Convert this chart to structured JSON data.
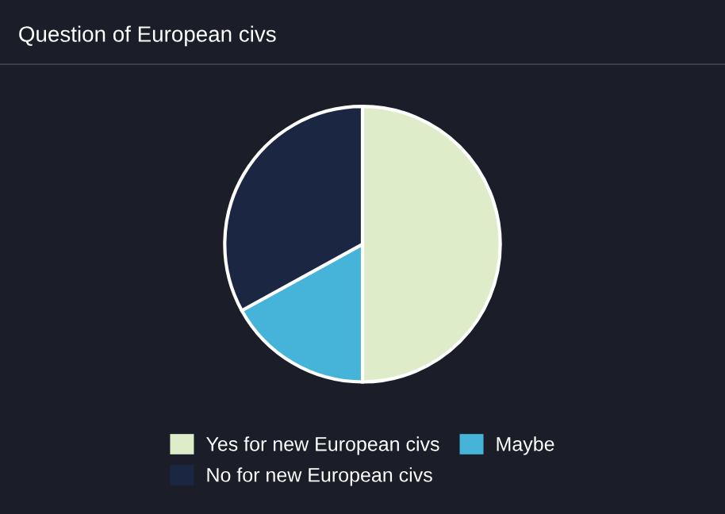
{
  "chart_data": {
    "type": "pie",
    "title": "Question of European civs",
    "categories": [
      "Yes for new European civs",
      "Maybe",
      "No for new European civs"
    ],
    "values": [
      50,
      17,
      33
    ],
    "colors": [
      "#dfecca",
      "#45b4d8",
      "#1b2742"
    ],
    "legend": "bottom"
  }
}
